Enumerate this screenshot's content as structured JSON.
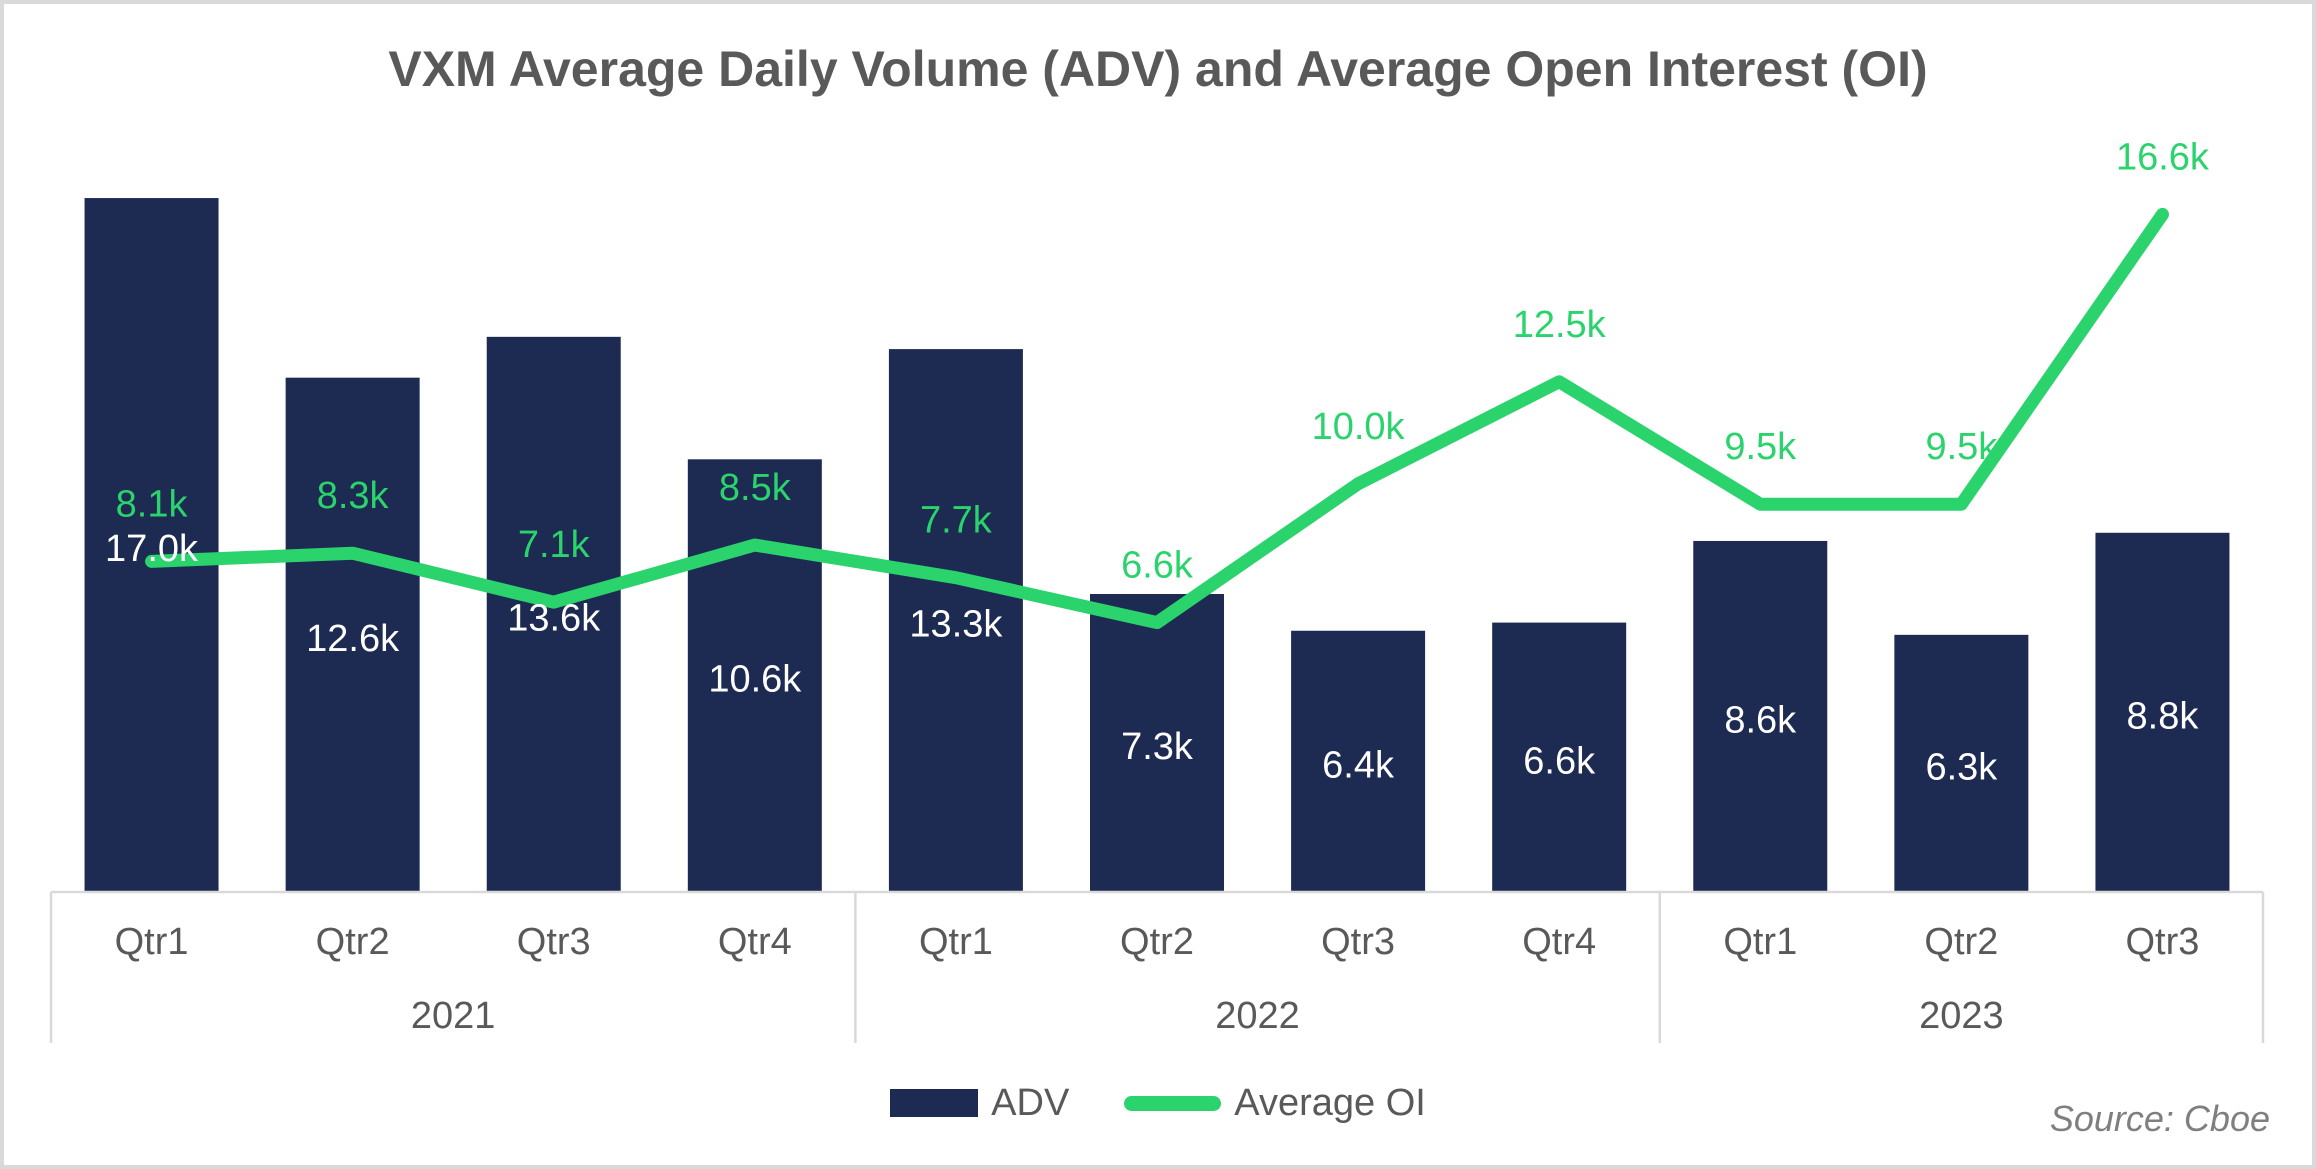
{
  "source_note": "Source: Cboe",
  "colors": {
    "bar": "#1d2a52",
    "line": "#2bd36d",
    "bar_label": "#ffffff",
    "axis_text": "#595959",
    "title_text": "#595959",
    "axis_line": "#d9d9d9",
    "source_text": "#7f7f7f",
    "frame_border": "#d9d9d9",
    "background": "#ffffff"
  },
  "chart_data": {
    "type": "combo_bar_line",
    "title": "VXM Average Daily Volume (ADV) and Average Open Interest (OI)",
    "xlabel": "",
    "ylabel": "",
    "ylim": [
      0,
      17.5
    ],
    "value_unit": "k",
    "y_axis_visible": false,
    "gridlines": false,
    "data_labels": true,
    "legend_position": "bottom",
    "categories": [
      "Qtr1",
      "Qtr2",
      "Qtr3",
      "Qtr4",
      "Qtr1",
      "Qtr2",
      "Qtr3",
      "Qtr4",
      "Qtr1",
      "Qtr2",
      "Qtr3"
    ],
    "year_groups": [
      {
        "label": "2021",
        "span": 4
      },
      {
        "label": "2022",
        "span": 4
      },
      {
        "label": "2023",
        "span": 3
      }
    ],
    "series": [
      {
        "name": "ADV",
        "type": "bar",
        "color": "#1d2a52",
        "values": [
          17.0,
          12.6,
          13.6,
          10.6,
          13.3,
          7.3,
          6.4,
          6.6,
          8.6,
          6.3,
          8.8
        ],
        "labels": [
          "17.0k",
          "12.6k",
          "13.6k",
          "10.6k",
          "13.3k",
          "7.3k",
          "6.4k",
          "6.6k",
          "8.6k",
          "6.3k",
          "8.8k"
        ]
      },
      {
        "name": "Average OI",
        "type": "line",
        "color": "#2bd36d",
        "values": [
          8.1,
          8.3,
          7.1,
          8.5,
          7.7,
          6.6,
          10.0,
          12.5,
          9.5,
          9.5,
          16.6
        ],
        "labels": [
          "8.1k",
          "8.3k",
          "7.1k",
          "8.5k",
          "7.7k",
          "6.6k",
          "10.0k",
          "12.5k",
          "9.5k",
          "9.5k",
          "16.6k"
        ]
      }
    ]
  }
}
